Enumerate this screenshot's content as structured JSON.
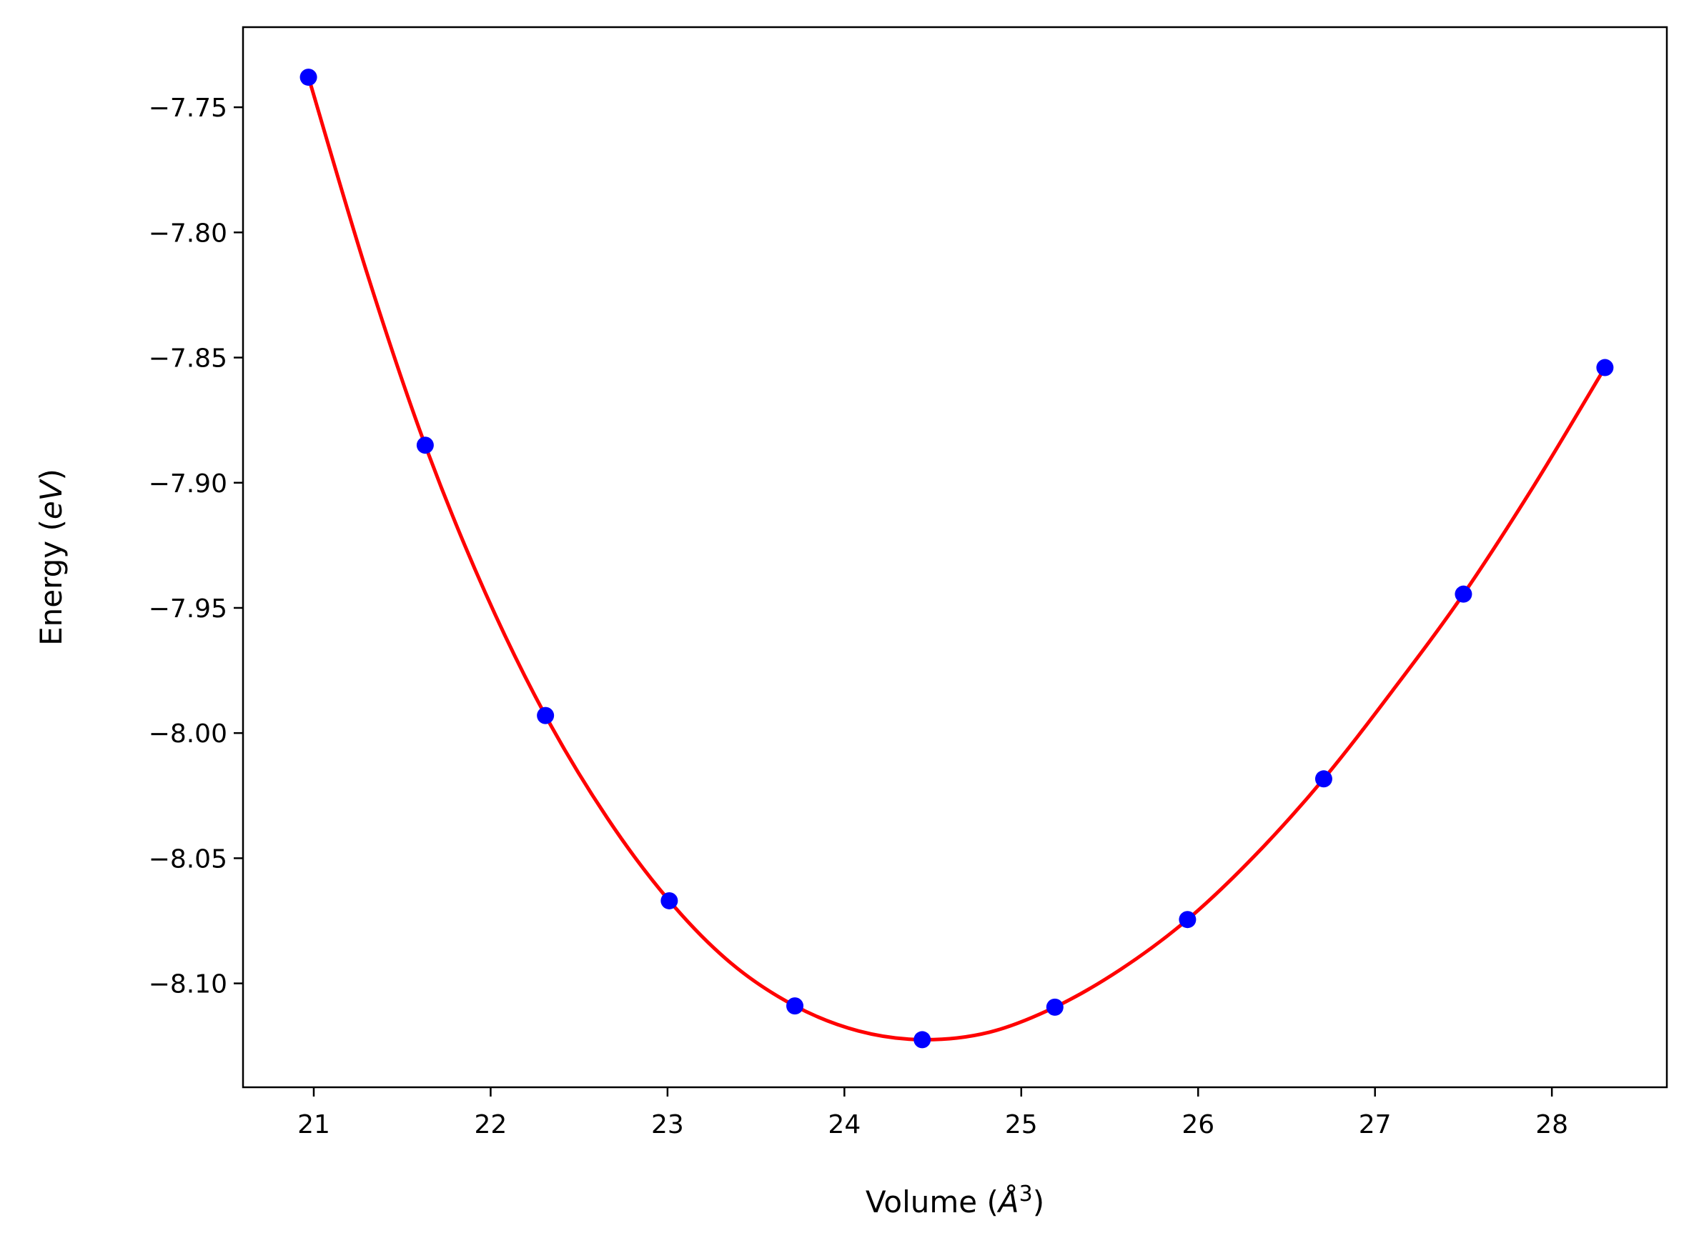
{
  "chart_data": {
    "type": "scatter",
    "title": "",
    "xlabel_parts": [
      "Volume (",
      "Å",
      "3",
      ")"
    ],
    "ylabel_parts": [
      "Energy (",
      "eV",
      ")"
    ],
    "xlim": [
      20.6,
      28.65
    ],
    "ylim": [
      -8.1415,
      -7.718
    ],
    "x_ticks": [
      21,
      22,
      23,
      24,
      25,
      26,
      27,
      28
    ],
    "y_ticks": [
      -7.75,
      -7.8,
      -7.85,
      -7.9,
      -7.95,
      -8.0,
      -8.05,
      -8.1
    ],
    "x_tick_labels": [
      "21",
      "22",
      "23",
      "24",
      "25",
      "26",
      "27",
      "28"
    ],
    "y_tick_labels": [
      "−7.75",
      "−7.80",
      "−7.85",
      "−7.90",
      "−7.95",
      "−8.00",
      "−8.05",
      "−8.10"
    ],
    "grid": false,
    "legend": "none",
    "series": [
      {
        "kind": "points",
        "color": "#0000ff",
        "x": [
          20.97,
          21.63,
          22.31,
          23.01,
          23.72,
          24.44,
          25.19,
          25.94,
          26.71,
          27.5,
          28.3
        ],
        "y": [
          -7.738,
          -7.885,
          -7.993,
          -8.067,
          -8.109,
          -8.1225,
          -8.1095,
          -8.0745,
          -8.0183,
          -7.9445,
          -7.854
        ]
      },
      {
        "kind": "fit-curve",
        "color": "#ff0000",
        "x": [
          20.97,
          21.3,
          21.63,
          21.97,
          22.31,
          22.66,
          23.01,
          23.36,
          23.72,
          24.08,
          24.44,
          24.82,
          25.19,
          25.56,
          25.94,
          26.32,
          26.71,
          27.1,
          27.5,
          27.9,
          28.3
        ],
        "y": [
          -7.738,
          -7.816,
          -7.885,
          -7.944,
          -7.993,
          -8.034,
          -8.067,
          -8.092,
          -8.109,
          -8.119,
          -8.1225,
          -8.1195,
          -8.1095,
          -8.0945,
          -8.0745,
          -8.049,
          -8.0183,
          -7.983,
          -7.9445,
          -7.901,
          -7.854
        ]
      }
    ]
  }
}
